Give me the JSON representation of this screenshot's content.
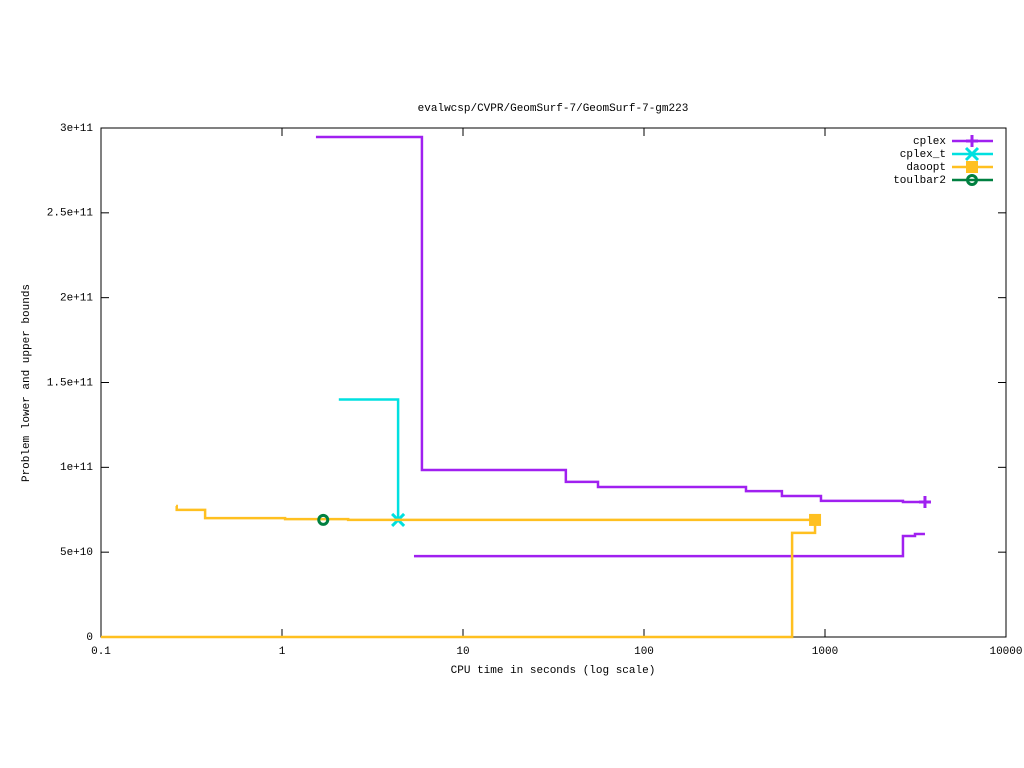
{
  "chart_data": {
    "type": "line",
    "step": "post",
    "title": "evalwcsp/CVPR/GeomSurf-7/GeomSurf-7-gm223",
    "xlabel": "CPU time in seconds (log scale)",
    "ylabel": "Problem lower and upper bounds",
    "xlog": true,
    "legend": "top-right",
    "xlim": [
      0.1,
      10000
    ],
    "xticks": [
      0.1,
      1,
      10,
      100,
      1000,
      10000
    ],
    "ylim": [
      0,
      300000000000
    ],
    "yticks": [
      0,
      {
        "value": 50000000000,
        "label": "5e+10"
      },
      {
        "value": 100000000000,
        "label": "1e+11"
      },
      {
        "value": 150000000000,
        "label": "1.5e+11"
      },
      {
        "value": 200000000000,
        "label": "2e+11"
      },
      {
        "value": 250000000000,
        "label": "2.5e+11"
      },
      {
        "value": 300000000000,
        "label": "3e+11"
      }
    ],
    "series": [
      {
        "name": "cplex",
        "color": "#a020f0",
        "marker": "plus",
        "x": [
          1.54,
          5.93,
          37,
          55.7,
          366,
          578,
          950,
          2696,
          3567,
          null,
          5.36,
          2696,
          3142,
          3567
        ],
        "values": [
          294700000000,
          98400000000,
          91400000000,
          88400000000,
          86000000000,
          83100000000,
          80200000000,
          79600000000,
          79600000000,
          null,
          47700000000,
          59500000000,
          60700000000,
          60700000000
        ]
      },
      {
        "name": "cplex_t",
        "color": "#00e0e0",
        "marker": "cross",
        "x": [
          2.06,
          4.38
        ],
        "values": [
          140000000000,
          69000000000
        ]
      },
      {
        "name": "daoopt",
        "color": "#ffc020",
        "marker": "square",
        "x": [
          0.26,
          0.262,
          0.376,
          1.04,
          2.32,
          881,
          null,
          0.1,
          658,
          881
        ],
        "values": [
          77200000000,
          74900000000,
          70100000000,
          69500000000,
          69000000000,
          69000000000,
          null,
          0,
          61400000000,
          69000000000
        ]
      },
      {
        "name": "toulbar2",
        "color": "#008040",
        "marker": "circle",
        "x": [
          1.69
        ],
        "values": [
          69000000000
        ]
      }
    ]
  }
}
